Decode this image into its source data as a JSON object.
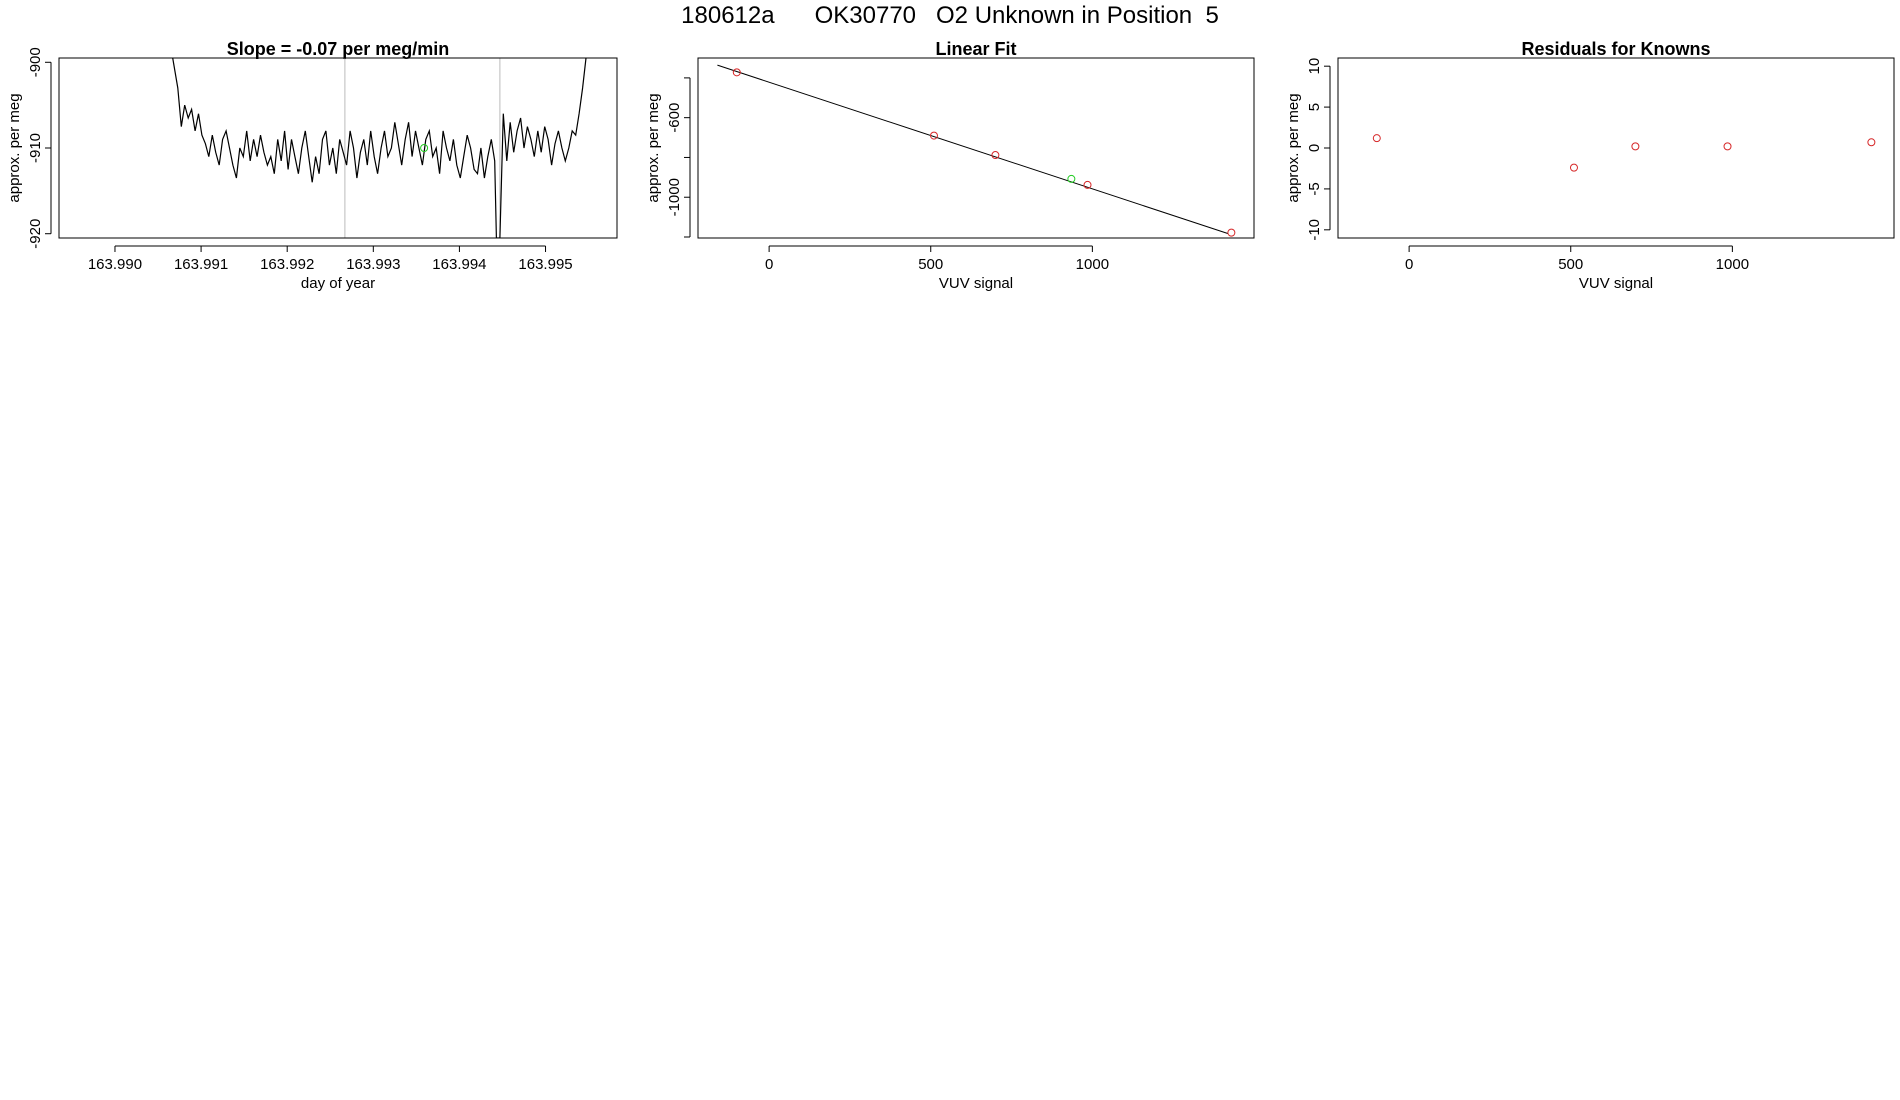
{
  "page": {
    "title": "180612a      OK30770   O2 Unknown in Position  5"
  },
  "colors": {
    "line": "#000000",
    "known_point": "#d62728",
    "unknown_point": "#22cc22",
    "marker_line": "#bbbbbb",
    "axis": "#000000"
  },
  "chart_data": [
    {
      "type": "line",
      "title": "Slope =  -0.07  per meg/min",
      "xlabel": "day of year",
      "ylabel": "approx. per meg",
      "xlim": [
        163.98935,
        163.99583
      ],
      "ylim": [
        -920.5,
        -899.5
      ],
      "xticks": [
        163.99,
        163.991,
        163.992,
        163.993,
        163.994,
        163.995
      ],
      "xtick_labels": [
        "163.990",
        "163.991",
        "163.992",
        "163.993",
        "163.994",
        "163.995"
      ],
      "yticks": [
        -900,
        -910,
        -920
      ],
      "ytick_labels": [
        "-900",
        "-910",
        "-920"
      ],
      "vlines": [
        163.99267,
        163.99447
      ],
      "series": [
        {
          "style": "line",
          "x": [
            163.99067,
            163.99073,
            163.99077,
            163.99081,
            163.99085,
            163.99089,
            163.99093,
            163.99097,
            163.99101,
            163.99105,
            163.99109,
            163.99113,
            163.99117,
            163.99121,
            163.99125,
            163.99129,
            163.99133,
            163.99137,
            163.99141,
            163.99145,
            163.99149,
            163.99153,
            163.99157,
            163.99161,
            163.99165,
            163.99169,
            163.99173,
            163.99177,
            163.99181,
            163.99185,
            163.99189,
            163.99193,
            163.99197,
            163.99201,
            163.99205,
            163.99209,
            163.99213,
            163.99217,
            163.99221,
            163.99225,
            163.99229,
            163.99233,
            163.99237,
            163.99241,
            163.99245,
            163.99249,
            163.99253,
            163.99257,
            163.99261,
            163.99265,
            163.99269,
            163.99273,
            163.99277,
            163.99281,
            163.99285,
            163.99289,
            163.99293,
            163.99297,
            163.99301,
            163.99305,
            163.99309,
            163.99313,
            163.99317,
            163.99321,
            163.99325,
            163.99329,
            163.99333,
            163.99337,
            163.99341,
            163.99345,
            163.99349,
            163.99353,
            163.99357,
            163.99361,
            163.99365,
            163.99369,
            163.99373,
            163.99377,
            163.99381,
            163.99385,
            163.99389,
            163.99393,
            163.99397,
            163.99401,
            163.99405,
            163.99409,
            163.99413,
            163.99417,
            163.99421,
            163.99425,
            163.99429,
            163.99433,
            163.99437,
            163.99441,
            163.99443,
            163.99447,
            163.99451,
            163.99455,
            163.99459,
            163.99463,
            163.99467,
            163.99471,
            163.99475,
            163.99479,
            163.99483,
            163.99487,
            163.99491,
            163.99495,
            163.99499,
            163.99503,
            163.99507,
            163.99511,
            163.99515,
            163.99519,
            163.99523,
            163.99527,
            163.99531,
            163.99535,
            163.99539,
            163.99543,
            163.99547
          ],
          "y": [
            -899.5,
            -903,
            -907.5,
            -905,
            -906.5,
            -905.5,
            -908,
            -906,
            -908.5,
            -909.5,
            -911,
            -908.5,
            -910.5,
            -912,
            -909,
            -908,
            -910,
            -912,
            -913.5,
            -910,
            -911,
            -908,
            -911.5,
            -909,
            -911,
            -908.5,
            -910.5,
            -912,
            -911,
            -913,
            -909,
            -911.5,
            -908,
            -912.5,
            -909,
            -911,
            -913,
            -910,
            -908,
            -911,
            -914,
            -911,
            -913,
            -909,
            -908,
            -912,
            -910,
            -913,
            -909,
            -910.5,
            -912,
            -908,
            -910,
            -913.5,
            -910.5,
            -909,
            -912,
            -908,
            -911,
            -913,
            -910,
            -908,
            -911,
            -910,
            -907,
            -909.5,
            -912,
            -909,
            -907,
            -911,
            -908,
            -910,
            -912,
            -909,
            -908,
            -911,
            -910,
            -913,
            -908,
            -910,
            -911.5,
            -909,
            -912,
            -913.5,
            -911,
            -908.5,
            -910,
            -912.5,
            -913,
            -910,
            -913.5,
            -911,
            -909,
            -911.5,
            -920.5,
            -920.5,
            -906,
            -911.5,
            -907,
            -910.5,
            -908,
            -906.5,
            -910,
            -907.5,
            -909,
            -911,
            -908,
            -910.5,
            -907.5,
            -909,
            -912,
            -909.5,
            -908,
            -910,
            -911.5,
            -910,
            -908,
            -908.5,
            -906,
            -903,
            -899.5
          ]
        },
        {
          "style": "point",
          "name": "unknown",
          "x": [
            163.99359
          ],
          "y": [
            -910
          ]
        }
      ]
    },
    {
      "type": "scatter",
      "title": "Linear Fit",
      "xlabel": "VUV signal",
      "ylabel": "approx. per meg",
      "xlim": [
        -220,
        1500
      ],
      "ylim": [
        -1205,
        -300
      ],
      "xticks": [
        0,
        500,
        1000
      ],
      "xtick_labels": [
        "0",
        "500",
        "1000"
      ],
      "yticks": [
        -600,
        -1000
      ],
      "ytick_labels": [
        "-600",
        "-1000"
      ],
      "extra_yticks": [
        -400,
        -800,
        -1200
      ],
      "fit_line": {
        "x": [
          -160,
          1420
        ],
        "y": [
          -336,
          -1183
        ]
      },
      "series": [
        {
          "name": "knowns",
          "x": [
            -100,
            510,
            700,
            985,
            1430
          ],
          "y": [
            -372,
            -690,
            -788,
            -938,
            -1178
          ]
        },
        {
          "name": "unknown",
          "x": [
            935
          ],
          "y": [
            -908
          ]
        }
      ]
    },
    {
      "type": "scatter",
      "title": "Residuals for Knowns",
      "xlabel": "VUV signal",
      "ylabel": "approx. per meg",
      "xlim": [
        -220,
        1500
      ],
      "ylim": [
        -11,
        11
      ],
      "xticks": [
        0,
        500,
        1000
      ],
      "xtick_labels": [
        "0",
        "500",
        "1000"
      ],
      "yticks": [
        10,
        5,
        0,
        -5,
        -10
      ],
      "ytick_labels": [
        "10",
        "5",
        "0",
        "-5",
        "-10"
      ],
      "series": [
        {
          "name": "knowns",
          "x": [
            -100,
            510,
            700,
            985,
            1430
          ],
          "y": [
            1.2,
            -2.4,
            0.2,
            0.2,
            0.7
          ]
        }
      ]
    }
  ]
}
